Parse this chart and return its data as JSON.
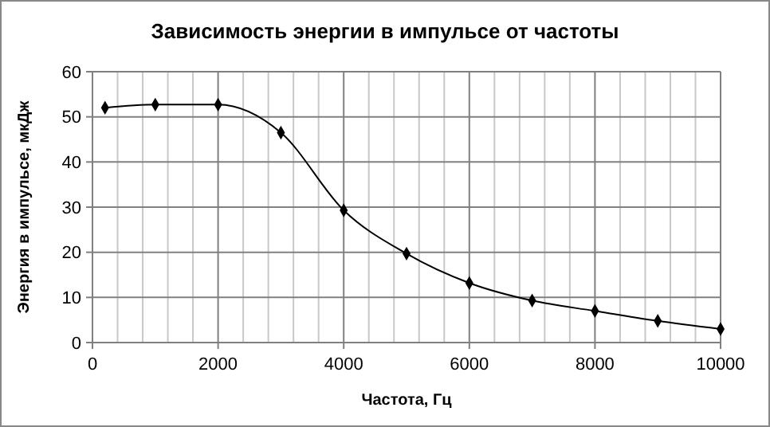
{
  "chart_data": {
    "type": "line",
    "title": "Зависимость энергии в импульсе от частоты",
    "xlabel": "Частота, Гц",
    "ylabel": "Энергия в импульсе, мкДж",
    "x": [
      200,
      1000,
      2000,
      3000,
      4000,
      5000,
      6000,
      7000,
      8000,
      9000,
      10000
    ],
    "series": [
      {
        "color": "#000000",
        "values": [
          52,
          52.7,
          52.7,
          46.5,
          29.3,
          19.7,
          13.2,
          9.3,
          7,
          4.8,
          3
        ]
      }
    ],
    "xlim": [
      0,
      10000
    ],
    "xticks": [
      0,
      2000,
      4000,
      6000,
      8000,
      10000
    ],
    "ylim": [
      0,
      60
    ],
    "yticks": [
      0,
      10,
      20,
      30,
      40,
      50,
      60
    ],
    "grid": true,
    "marker": "diamond",
    "line_style": "solid"
  }
}
